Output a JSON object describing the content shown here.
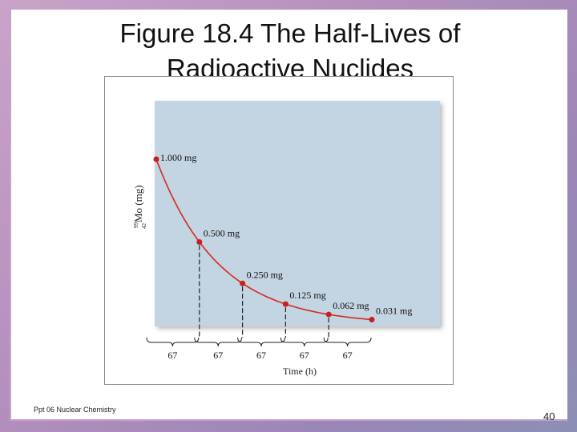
{
  "title_line1": "Figure 18.4  The Half-Lives of",
  "title_line2": "Radioactive Nuclides",
  "footer": "Ppt 06 Nuclear Chemistry",
  "page_number": "40",
  "colors": {
    "plot_bg": "#c3d4e2",
    "curve": "#d42a1e",
    "point": "#c8201a"
  },
  "chart_data": {
    "type": "line",
    "title": "",
    "xlabel": "Time (h)",
    "ylabel_mass_number": "99",
    "ylabel_atomic_number": "42",
    "ylabel_text": "Mo (mg)",
    "x": [
      0,
      67,
      134,
      201,
      268,
      335
    ],
    "y": [
      1.0,
      0.5,
      0.25,
      0.125,
      0.0625,
      0.03125
    ],
    "point_labels": [
      "1.000 mg",
      "0.500 mg",
      "0.250 mg",
      "0.125 mg",
      "0.062 mg",
      "0.031 mg"
    ],
    "interval_labels": [
      "67",
      "67",
      "67",
      "67",
      "67"
    ],
    "xlim": [
      0,
      335
    ],
    "ylim": [
      0,
      1.0
    ],
    "grid": false,
    "legend": "none"
  }
}
